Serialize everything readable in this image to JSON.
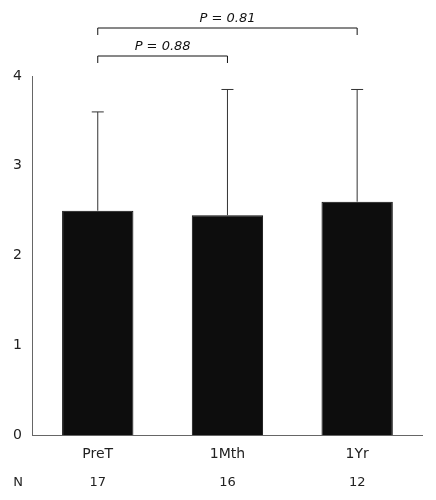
{
  "chart_data": {
    "type": "bar",
    "categories": [
      "PreT",
      "1Mth",
      "1Yr"
    ],
    "values": [
      2.5,
      2.45,
      2.6
    ],
    "errors": [
      1.1,
      1.4,
      1.25
    ],
    "color": "#0d0d0d",
    "ylim": [
      0,
      4.0
    ],
    "yticks": [
      0,
      1,
      2,
      3,
      4
    ],
    "grid": false,
    "n_label": "N",
    "n": [
      17,
      16,
      12
    ],
    "annotations": [
      {
        "text": "P = 0.88",
        "from": "PreT",
        "to": "1Mth"
      },
      {
        "text": "P = 0.81",
        "from": "PreT",
        "to": "1Yr"
      }
    ]
  }
}
